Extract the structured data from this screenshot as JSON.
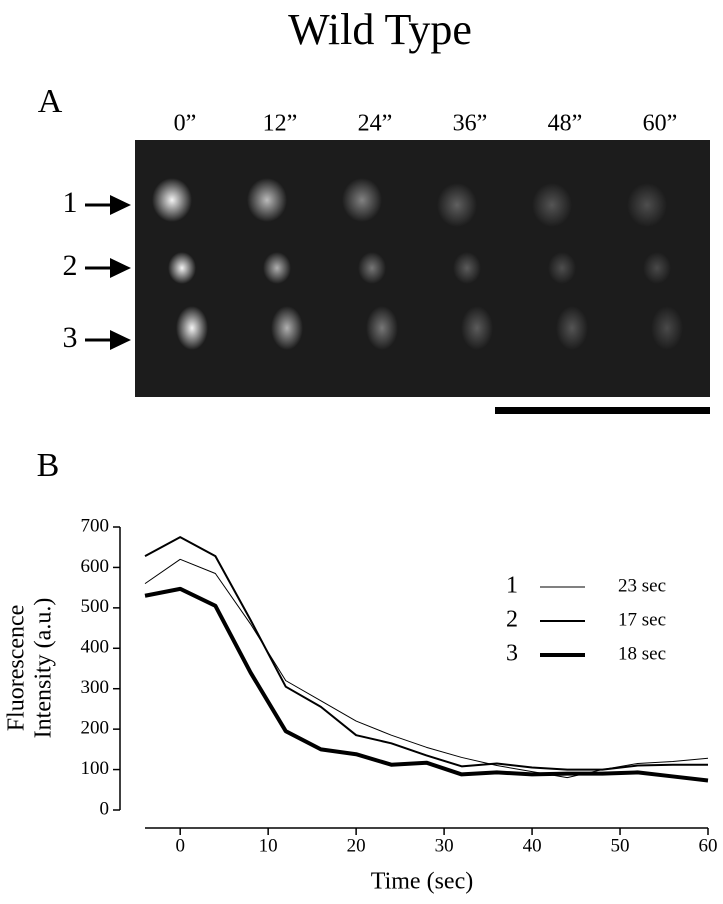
{
  "title": "Wild Type",
  "panel_a": {
    "label": "A",
    "times": [
      "0”",
      "12”",
      "24”",
      "36”",
      "48”",
      "60”"
    ],
    "rows": [
      "1",
      "2",
      "3"
    ]
  },
  "panel_b": {
    "label": "B"
  },
  "chart_data": {
    "type": "line",
    "xlabel": "Time (sec)",
    "ylabel": [
      "Fluorescence",
      "Intensity (a.u.)"
    ],
    "x": [
      -4,
      0,
      4,
      8,
      12,
      16,
      20,
      24,
      28,
      32,
      36,
      40,
      44,
      48,
      52,
      56,
      60
    ],
    "series": [
      {
        "name": "1",
        "legend_note": "23 sec",
        "color": "#000000",
        "width": 1,
        "values": [
          560,
          620,
          585,
          460,
          320,
          270,
          220,
          185,
          155,
          130,
          110,
          95,
          80,
          100,
          115,
          120,
          128
        ]
      },
      {
        "name": "2",
        "legend_note": "17 sec",
        "color": "#000000",
        "width": 2,
        "values": [
          628,
          675,
          628,
          470,
          305,
          255,
          185,
          165,
          135,
          108,
          115,
          105,
          100,
          100,
          110,
          112,
          112
        ]
      },
      {
        "name": "3",
        "legend_note": "18 sec",
        "color": "#000000",
        "width": 4,
        "values": [
          530,
          547,
          505,
          340,
          195,
          150,
          138,
          112,
          117,
          88,
          93,
          88,
          90,
          90,
          93,
          83,
          73
        ]
      }
    ],
    "xlim": [
      -4,
      60
    ],
    "xticks": [
      0,
      10,
      20,
      30,
      40,
      50,
      60
    ],
    "ylim": [
      0,
      700
    ],
    "yticks": [
      0,
      100,
      200,
      300,
      400,
      500,
      600,
      700
    ]
  }
}
